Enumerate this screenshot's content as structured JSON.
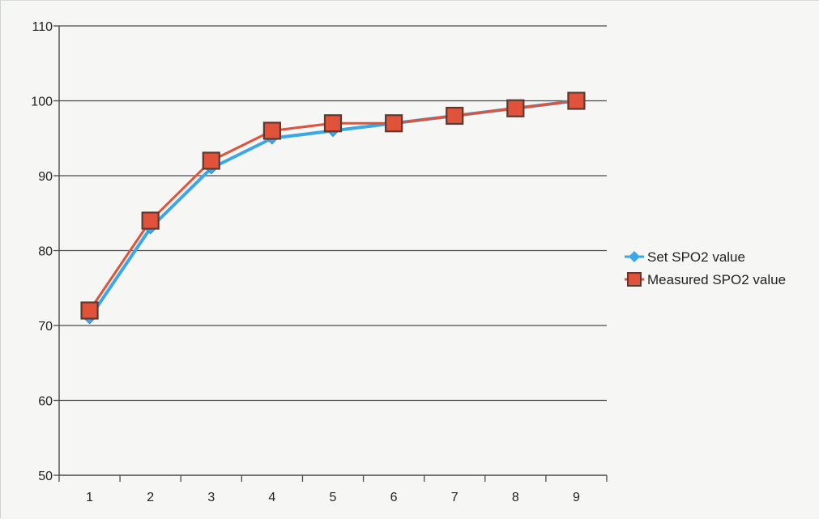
{
  "chart_data": {
    "type": "line",
    "categories": [
      "1",
      "2",
      "3",
      "4",
      "5",
      "6",
      "7",
      "8",
      "9"
    ],
    "series": [
      {
        "name": "Set SPO2 value",
        "values": [
          71,
          83,
          91,
          95,
          96,
          97,
          98,
          99,
          100
        ],
        "color": "#3aa8e6",
        "marker": "diamond"
      },
      {
        "name": "Measured SPO2 value",
        "values": [
          72,
          84,
          92,
          96,
          97,
          97,
          98,
          99,
          100
        ],
        "color": "#e0533a",
        "marker": "square"
      }
    ],
    "title": "",
    "xlabel": "",
    "ylabel": "",
    "ylim": [
      50,
      110
    ],
    "yticks": [
      50,
      60,
      70,
      80,
      90,
      100,
      110
    ],
    "grid": true,
    "legend_position": "right"
  }
}
